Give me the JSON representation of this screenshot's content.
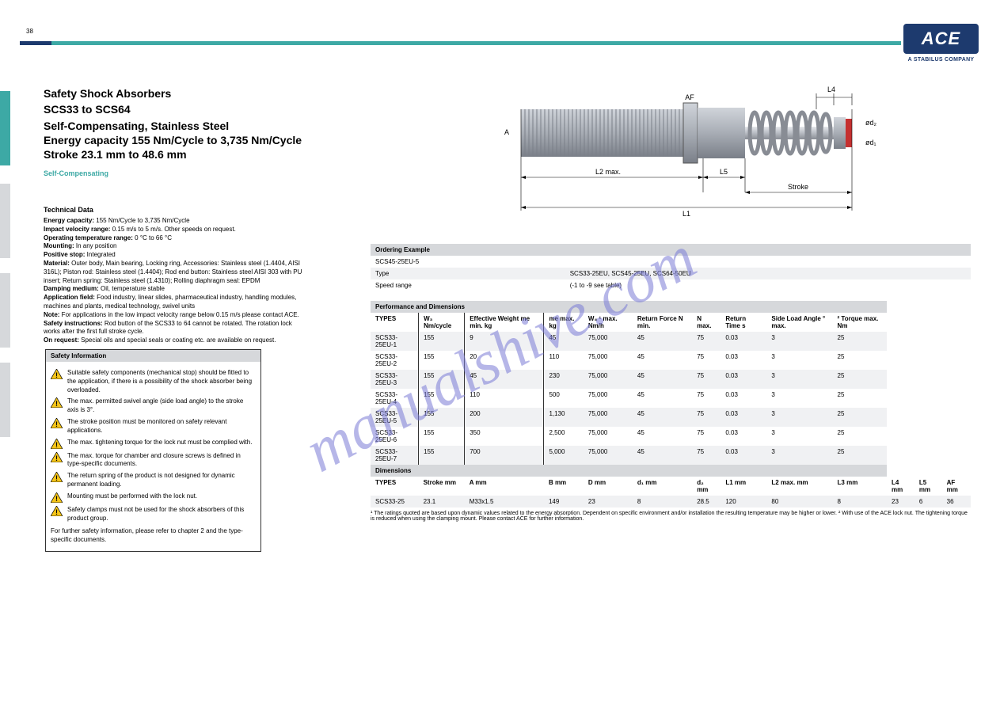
{
  "watermark": "manualshive.com",
  "page_number": "38",
  "header": {
    "logo_text": "ACE",
    "logo_subtitle": "A STABILUS COMPANY"
  },
  "left": {
    "section": "Safety Shock Absorbers",
    "series_family": "SCS33 to SCS64",
    "range_line1": "Self-Compensating, Stainless Steel",
    "range_line2": "Energy capacity 155 Nm/Cycle to 3,735 Nm/Cycle",
    "range_line3": "Stroke 23.1 mm to 48.6 mm",
    "green_sub": "Self-Compensating"
  },
  "tech": {
    "title": "Technical Data",
    "items": [
      {
        "k": "Energy capacity:",
        "v": "155 Nm/Cycle to 3,735 Nm/Cycle"
      },
      {
        "k": "Impact velocity range:",
        "v": "0.15 m/s to 5 m/s. Other speeds on request."
      },
      {
        "k": "Operating temperature range:",
        "v": "0 °C to 66 °C"
      },
      {
        "k": "Mounting:",
        "v": "In any position"
      },
      {
        "k": "Positive stop:",
        "v": "Integrated"
      },
      {
        "k": "Material:",
        "v": "Outer body, Main bearing, Locking ring, Accessories: Stainless steel (1.4404, AISI 316L); Piston rod: Stainless steel (1.4404); Rod end button: Stainless steel AISI 303 with PU insert; Return spring: Stainless steel (1.4310); Rolling diaphragm seal: EPDM"
      },
      {
        "k": "Damping medium:",
        "v": "Oil, temperature stable"
      },
      {
        "k": "Application field:",
        "v": "Food industry, linear slides, pharmaceutical industry, handling modules, machines and plants, medical technology, swivel units"
      },
      {
        "k": "Note:",
        "v": "For applications in the low impact velocity range below 0.15 m/s please contact ACE."
      },
      {
        "k": "Safety instructions:",
        "v": "Rod button of the SCS33 to 64 cannot be rotated. The rotation lock works after the first full stroke cycle."
      },
      {
        "k": "On request:",
        "v": "Special oils and special seals or coating etc. are available on request."
      }
    ]
  },
  "safety": {
    "header": "Safety Information",
    "rows": [
      "Suitable safety components (mechanical stop) should be fitted to the application, if there is a possibility of the shock absorber being overloaded.",
      "The max. permitted swivel angle (side load angle) to the stroke axis is 3°.",
      "The stroke position must be monitored on safety relevant applications.",
      "The max. tightening torque for the lock nut must be complied with.",
      "The max. torque for chamber and closure screws is defined in type-specific documents.",
      "The return spring of the product is not designed for dynamic permanent loading.",
      "Mounting must be performed with the lock nut.",
      "Safety clamps must not be used for the shock absorbers of this product group."
    ],
    "plain": "For further safety information, please refer to chapter 2 and the type-specific documents."
  },
  "dim_labels": {
    "d1": "ød₁",
    "d2": "ød₂",
    "AF": "AF",
    "L4": "L4",
    "L5": "L5",
    "Stroke": "Stroke",
    "A": "A",
    "L1": "L1",
    "L2max": "L2 max."
  },
  "ordering": {
    "header": "Ordering Example",
    "rows": [
      {
        "c1": "SCS45-25EU-5",
        "c2": "",
        "c3": ""
      },
      {
        "c1": "Type",
        "c2": "",
        "c3": "SCS33-25EU, SCS45-25EU, SCS64-50EU"
      },
      {
        "c1": "Speed range",
        "c2": "",
        "c3": "(-1 to -9 see table)"
      }
    ]
  },
  "perf": {
    "header": "Performance and Dimensions",
    "cols": [
      "TYPES",
      "W₃ Nm/cycle",
      "Effective Weight me min. kg",
      "me max. kg",
      "W₄ ¹ max. Nm/h",
      "Return Force N min.",
      "N max.",
      "Return Time s",
      "Side Load Angle ° max.",
      "² Torque max. Nm"
    ],
    "groups": [
      {
        "label": "",
        "rows": [
          {
            "t": "SCS33-25EU-1",
            "v": [
              "155",
              "9",
              "45",
              "75,000",
              "45",
              "75",
              "0.03",
              "3",
              "25"
            ]
          },
          {
            "t": "SCS33-25EU-2",
            "v": [
              "155",
              "20",
              "110",
              "75,000",
              "45",
              "75",
              "0.03",
              "3",
              "25"
            ]
          },
          {
            "t": "SCS33-25EU-3",
            "v": [
              "155",
              "45",
              "230",
              "75,000",
              "45",
              "75",
              "0.03",
              "3",
              "25"
            ]
          },
          {
            "t": "SCS33-25EU-4",
            "v": [
              "155",
              "110",
              "500",
              "75,000",
              "45",
              "75",
              "0.03",
              "3",
              "25"
            ]
          },
          {
            "t": "SCS33-25EU-5",
            "v": [
              "155",
              "200",
              "1,130",
              "75,000",
              "45",
              "75",
              "0.03",
              "3",
              "25"
            ]
          },
          {
            "t": "SCS33-25EU-6",
            "v": [
              "155",
              "350",
              "2,500",
              "75,000",
              "45",
              "75",
              "0.03",
              "3",
              "25"
            ]
          },
          {
            "t": "SCS33-25EU-7",
            "v": [
              "155",
              "700",
              "5,000",
              "75,000",
              "45",
              "75",
              "0.03",
              "3",
              "25"
            ]
          }
        ]
      },
      {
        "label": "Dimensions",
        "cols": [
          "TYPES",
          "Stroke mm",
          "A mm",
          "B mm",
          "D mm",
          "d₁ mm",
          "d₂ mm",
          "L1 mm",
          "L2 max. mm",
          "L3 mm",
          "L4 mm",
          "L5 mm",
          "AF mm"
        ],
        "rows": [
          {
            "t": "SCS33-25",
            "v": [
              "23.1",
              "M33x1.5",
              "149",
              "23",
              "8",
              "28.5",
              "120",
              "80",
              "8",
              "23",
              "6",
              "36"
            ]
          }
        ]
      }
    ],
    "footnote": "¹ The ratings quoted are based upon dynamic values related to the energy absorption. Dependent on specific environment and/or installation the resulting temperature may be higher or lower. ² With use of the ACE lock nut. The tightening torque is reduced when using the clamping mount. Please contact ACE for further information."
  },
  "colors": {
    "brand": "#1d3a6e",
    "accent": "#3da9a5",
    "band": "#d6d8db",
    "alt": "#f0f1f3",
    "warn_fill": "#f5c518",
    "warn_stroke": "#000000",
    "damper_body": "#a8adb5",
    "damper_light": "#d0d4da",
    "damper_dark": "#7a7f88",
    "damper_tip": "#c53030"
  }
}
